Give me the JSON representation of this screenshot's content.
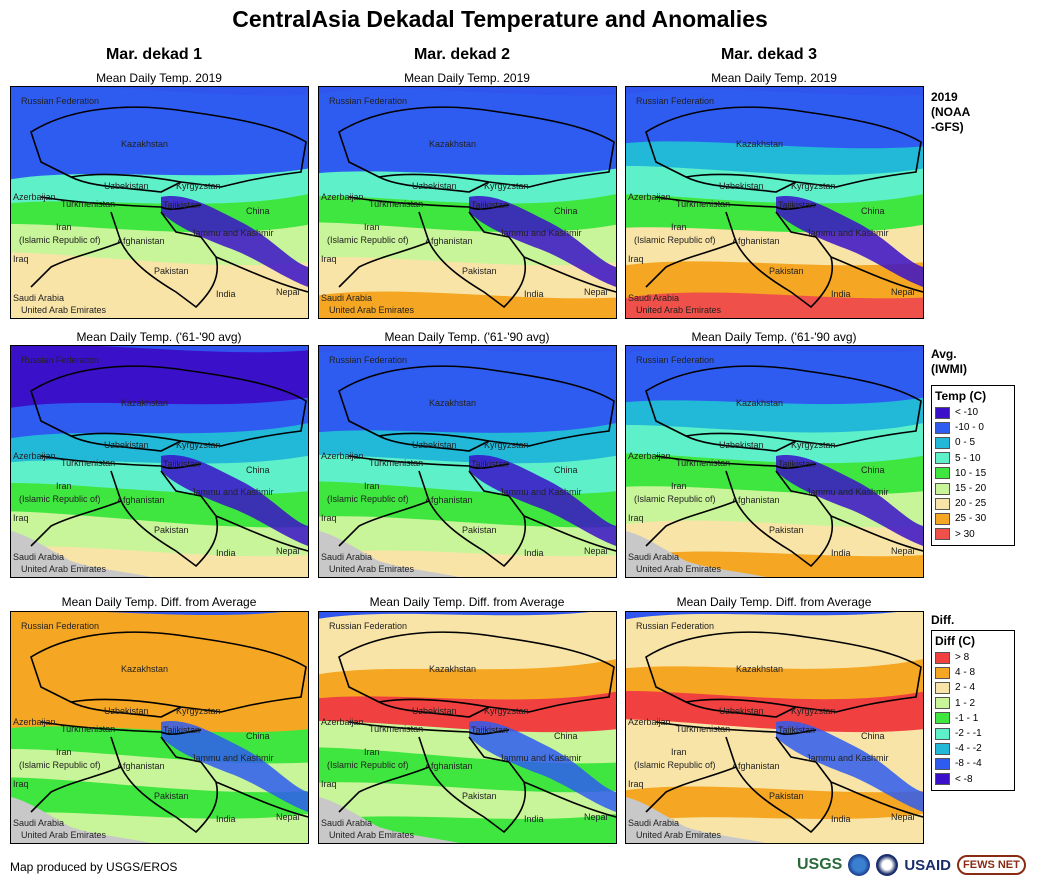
{
  "title": "CentralAsia Dekadal Temperature and Anomalies",
  "columns": [
    "Mar. dekad 1",
    "Mar. dekad 2",
    "Mar. dekad 3"
  ],
  "row_titles": [
    "Mean Daily Temp. 2019",
    "Mean Daily Temp. ('61-'90 avg)",
    "Mean Daily Temp. Diff. from Average"
  ],
  "row_side_labels": [
    "2019\n(NOAA\n-GFS)",
    "Avg.\n(IWMI)",
    "Diff."
  ],
  "country_labels": [
    "Russian Federation",
    "Kazakhstan",
    "Uzbekistan",
    "Kyrgyzstan",
    "Azerbaijan",
    "Turkmenistan",
    "Tajikistan",
    "China",
    "Iran",
    "(Islamic Republic of)",
    "Afghanistan",
    "Jammu and Kashmir",
    "Iraq",
    "Pakistan",
    "Nepal",
    "India",
    "Saudi Arabia",
    "United Arab Emirates"
  ],
  "temp_legend": {
    "title": "Temp (C)",
    "items": [
      {
        "label": "< -10",
        "color": "#3a10c8"
      },
      {
        "label": "-10 - 0",
        "color": "#2f5cf0"
      },
      {
        "label": "0 - 5",
        "color": "#22b8d8"
      },
      {
        "label": "5 - 10",
        "color": "#5ef0c8"
      },
      {
        "label": "10 - 15",
        "color": "#3fe63f"
      },
      {
        "label": "15 - 20",
        "color": "#c8f59a"
      },
      {
        "label": "20 - 25",
        "color": "#f9e4a8"
      },
      {
        "label": "25 - 30",
        "color": "#f5a623"
      },
      {
        "label": "> 30",
        "color": "#f0504a"
      }
    ]
  },
  "diff_legend": {
    "title": "Diff (C)",
    "items": [
      {
        "label": "> 8",
        "color": "#f04040"
      },
      {
        "label": "4 - 8",
        "color": "#f5a623"
      },
      {
        "label": "2 - 4",
        "color": "#f9e4a8"
      },
      {
        "label": "1 - 2",
        "color": "#c8f59a"
      },
      {
        "label": "-1 - 1",
        "color": "#3fe63f"
      },
      {
        "label": "-2 - -1",
        "color": "#5ef0c8"
      },
      {
        "label": "-4 - -2",
        "color": "#22b8d8"
      },
      {
        "label": "-8 - -4",
        "color": "#2f5cf0"
      },
      {
        "label": "< -8",
        "color": "#3a10c8"
      }
    ]
  },
  "credit": "Map produced by USGS/EROS",
  "logos": {
    "usgs": "USGS",
    "usaid": "USAID",
    "fews": "FEWS NET"
  }
}
